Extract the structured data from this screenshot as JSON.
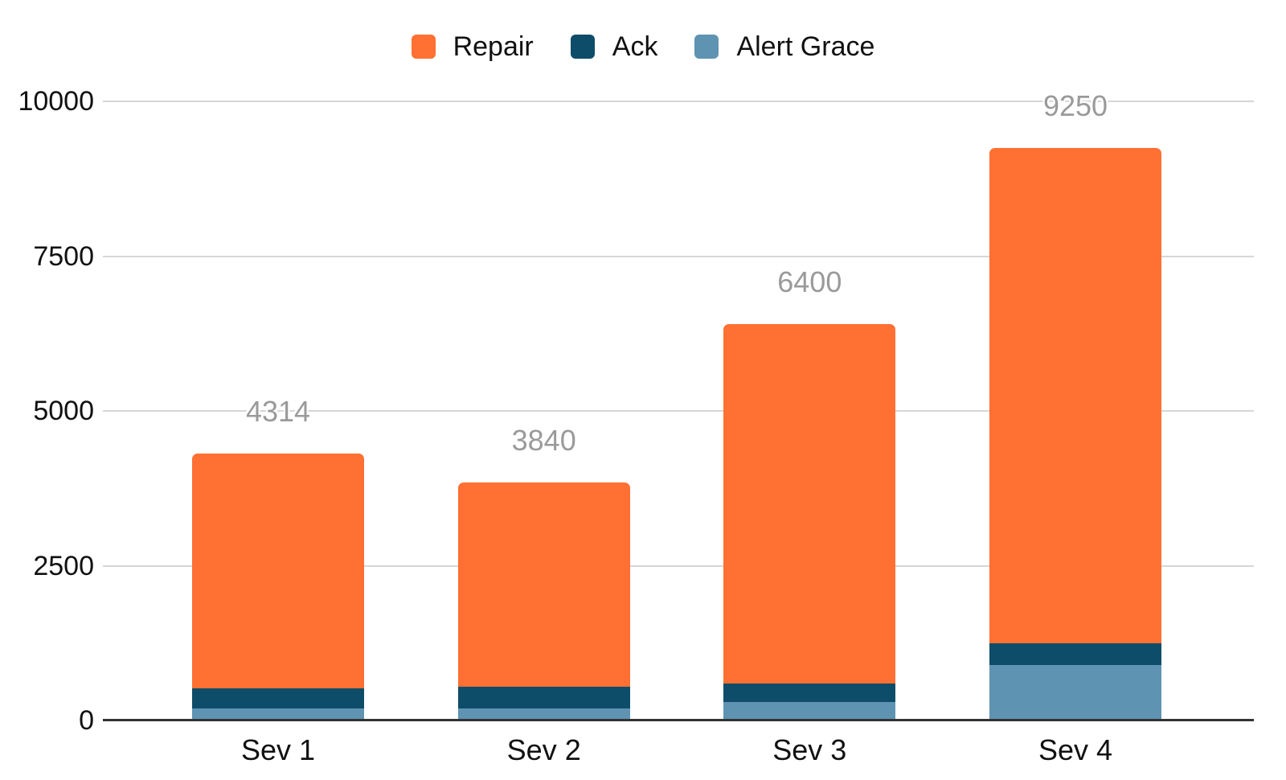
{
  "chart_data": {
    "type": "bar",
    "stacked": true,
    "title": "",
    "xlabel": "",
    "ylabel": "",
    "categories": [
      "Sev 1",
      "Sev 2",
      "Sev 3",
      "Sev 4"
    ],
    "series": [
      {
        "name": "Repair",
        "color": "#FF7032",
        "values": [
          3794,
          3290,
          5800,
          8000
        ]
      },
      {
        "name": "Ack",
        "color": "#0E4D69",
        "values": [
          320,
          350,
          300,
          350
        ]
      },
      {
        "name": "Alert Grace",
        "color": "#5E93B2",
        "values": [
          200,
          200,
          300,
          900
        ]
      }
    ],
    "stack_order_bottom_to_top": [
      "Alert Grace",
      "Ack",
      "Repair"
    ],
    "totals": [
      4314,
      3840,
      6400,
      9250
    ],
    "total_labels": [
      "4314",
      "3840",
      "6400",
      "9250"
    ],
    "yticks": [
      0,
      2500,
      5000,
      7500,
      10000
    ],
    "ytick_labels": [
      "0",
      "2500",
      "5000",
      "7500",
      "10000"
    ],
    "ylim": [
      0,
      10000
    ],
    "grid": true,
    "legend_position": "top",
    "total_label_color": "#9A9A9A",
    "gridline_color": "#D6D6D6",
    "axis_line_color": "#333333",
    "text_color": "#111111",
    "background_color": "#FFFFFF"
  }
}
